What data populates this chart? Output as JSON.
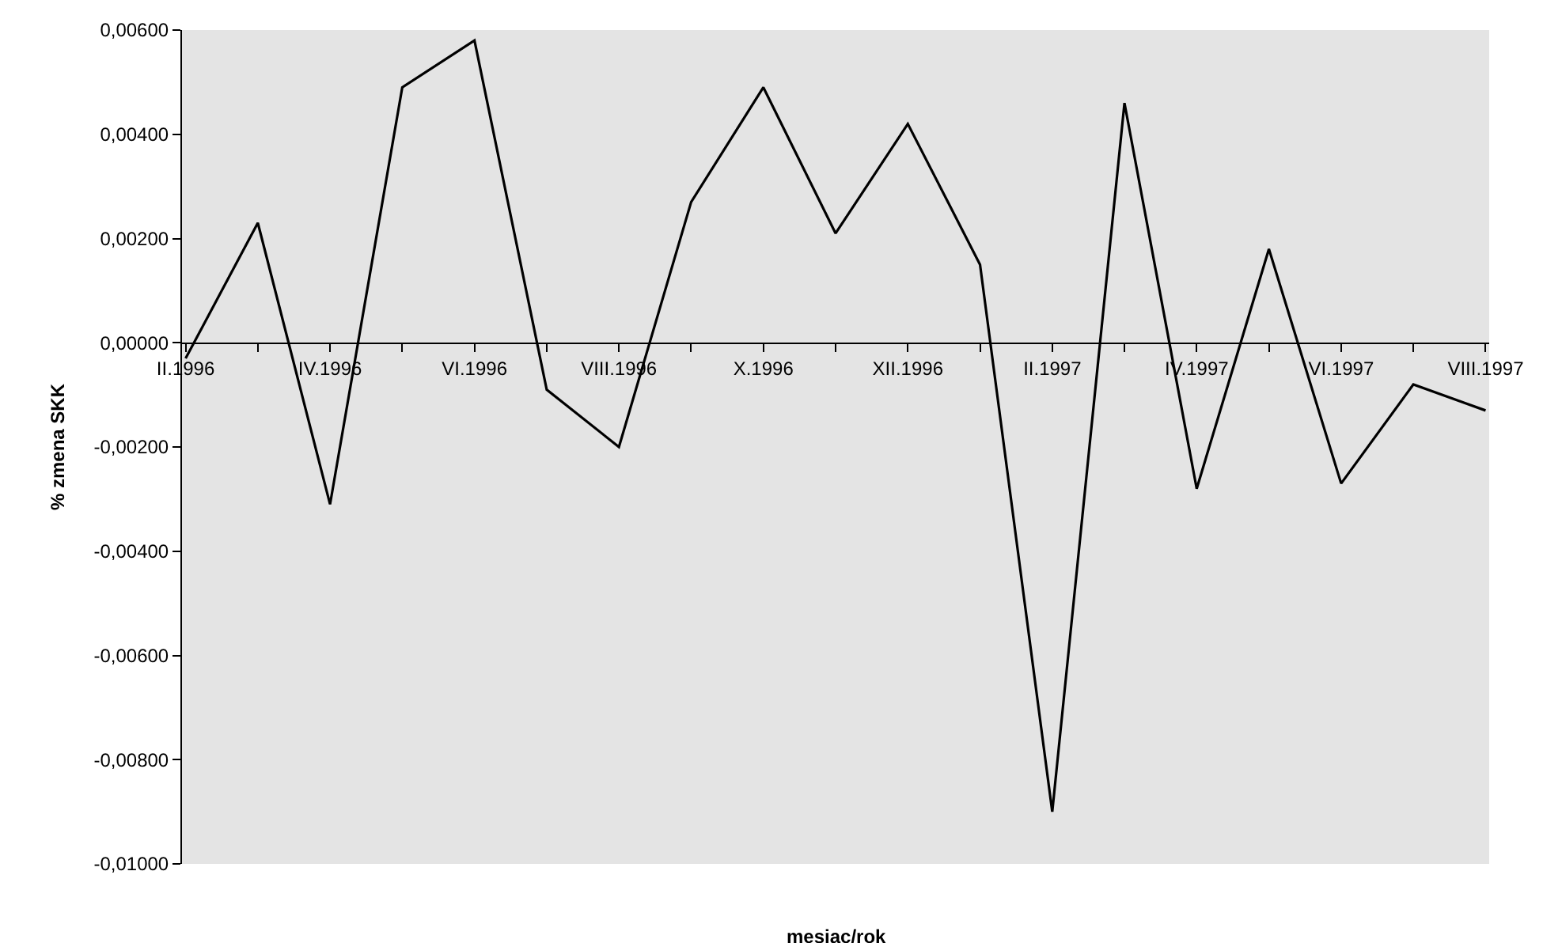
{
  "chart_data": {
    "type": "line",
    "xlabel": "mesiac/rok",
    "ylabel": "% zmena SKK",
    "categories": [
      "II.1996",
      null,
      "IV.1996",
      null,
      "VI.1996",
      null,
      "VIII.1996",
      null,
      "X.1996",
      null,
      "XII.1996",
      null,
      "II.1997",
      null,
      "IV.1997",
      null,
      "VI.1997",
      null,
      "VIII.1997"
    ],
    "series": [
      {
        "color": "#000000",
        "values": [
          -0.0003,
          0.0023,
          -0.0031,
          0.0049,
          0.0058,
          -0.0009,
          -0.002,
          0.0027,
          0.0049,
          0.0021,
          0.0042,
          0.0015,
          -0.009,
          0.0046,
          -0.0028,
          0.0018,
          -0.0027,
          -0.0008,
          -0.0013
        ]
      }
    ],
    "ylim": [
      -0.01,
      0.006
    ],
    "yticks": [
      {
        "value": 0.006,
        "label": "0,00600"
      },
      {
        "value": 0.004,
        "label": "0,00400"
      },
      {
        "value": 0.002,
        "label": "0,00200"
      },
      {
        "value": 0,
        "label": "0,00000"
      },
      {
        "value": -0.002,
        "label": "-0,00200"
      },
      {
        "value": -0.004,
        "label": "-0,00400"
      },
      {
        "value": -0.006,
        "label": "-0,00600"
      },
      {
        "value": -0.008,
        "label": "-0,00800"
      },
      {
        "value": -0.01,
        "label": "-0,01000"
      }
    ],
    "grid": false,
    "legend": false,
    "marker": "none",
    "line_style": "solid"
  }
}
